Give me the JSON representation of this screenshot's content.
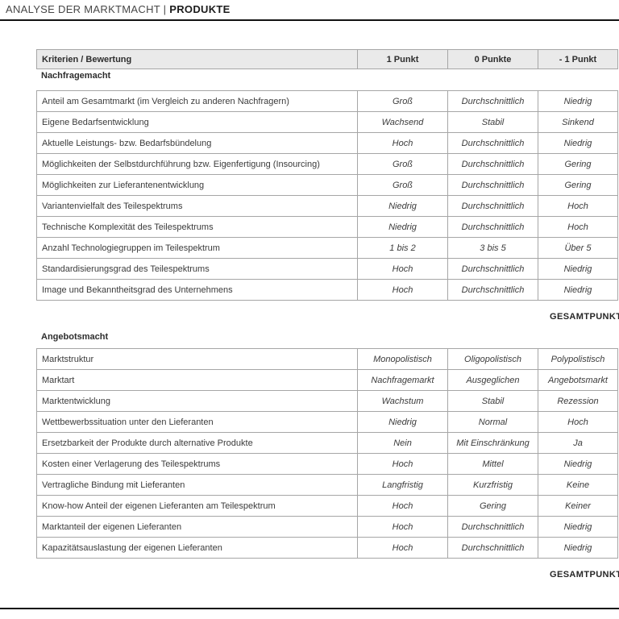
{
  "page": {
    "title_prefix": "ANALYSE DER MARKTMACHT | ",
    "title_emphasis": "PRODUKTE"
  },
  "colors": {
    "header_bg": "#eaeaea",
    "table_border": "#a6a6a6",
    "rule": "#121212",
    "text": "#3b3b3b"
  },
  "table_header": {
    "criteria": "Kriterien / Bewertung",
    "col_plus1": "1 Punkt",
    "col_zero": "0 Punkte",
    "col_minus1": "- 1 Punkt"
  },
  "sections": [
    {
      "title": "Nachfragemacht",
      "total_label": "GESAMTPUNKTE",
      "rows": [
        {
          "criterion": "Anteil am Gesamtmarkt (im Vergleich zu anderen Nachfragern)",
          "p1": "Groß",
          "p0": "Durchschnittlich",
          "m1": "Niedrig"
        },
        {
          "criterion": "Eigene Bedarfsentwicklung",
          "p1": "Wachsend",
          "p0": "Stabil",
          "m1": "Sinkend"
        },
        {
          "criterion": "Aktuelle Leistungs- bzw. Bedarfsbündelung",
          "p1": "Hoch",
          "p0": "Durchschnittlich",
          "m1": "Niedrig"
        },
        {
          "criterion": "Möglichkeiten der Selbstdurchführung bzw. Eigenfertigung (Insourcing)",
          "p1": "Groß",
          "p0": "Durchschnittlich",
          "m1": "Gering"
        },
        {
          "criterion": "Möglichkeiten zur Lieferantenentwicklung",
          "p1": "Groß",
          "p0": "Durchschnittlich",
          "m1": "Gering"
        },
        {
          "criterion": "Variantenvielfalt des Teilespektrums",
          "p1": "Niedrig",
          "p0": "Durchschnittlich",
          "m1": "Hoch"
        },
        {
          "criterion": "Technische Komplexität des Teilespektrums",
          "p1": "Niedrig",
          "p0": "Durchschnittlich",
          "m1": "Hoch"
        },
        {
          "criterion": "Anzahl Technologiegruppen im Teilespektrum",
          "p1": "1 bis 2",
          "p0": "3 bis 5",
          "m1": "Über 5"
        },
        {
          "criterion": "Standardisierungsgrad des Teilespektrums",
          "p1": "Hoch",
          "p0": "Durchschnittlich",
          "m1": "Niedrig"
        },
        {
          "criterion": "Image und Bekanntheitsgrad des Unternehmens",
          "p1": "Hoch",
          "p0": "Durchschnittlich",
          "m1": "Niedrig"
        }
      ]
    },
    {
      "title": "Angebotsmacht",
      "total_label": "GESAMTPUNKTE",
      "rows": [
        {
          "criterion": "Marktstruktur",
          "p1": "Monopolistisch",
          "p0": "Oligopolistisch",
          "m1": "Polypolistisch"
        },
        {
          "criterion": "Marktart",
          "p1": "Nachfragemarkt",
          "p0": "Ausgeglichen",
          "m1": "Angebotsmarkt"
        },
        {
          "criterion": "Marktentwicklung",
          "p1": "Wachstum",
          "p0": "Stabil",
          "m1": "Rezession"
        },
        {
          "criterion": "Wettbewerbssituation unter den Lieferanten",
          "p1": "Niedrig",
          "p0": "Normal",
          "m1": "Hoch"
        },
        {
          "criterion": "Ersetzbarkeit der Produkte durch alternative Produkte",
          "p1": "Nein",
          "p0": "Mit Einschränkung",
          "m1": "Ja"
        },
        {
          "criterion": "Kosten einer Verlagerung des Teilespektrums",
          "p1": "Hoch",
          "p0": "Mittel",
          "m1": "Niedrig"
        },
        {
          "criterion": "Vertragliche Bindung mit Lieferanten",
          "p1": "Langfristig",
          "p0": "Kurzfristig",
          "m1": "Keine"
        },
        {
          "criterion": "Know-how Anteil der eigenen Lieferanten am Teilespektrum",
          "p1": "Hoch",
          "p0": "Gering",
          "m1": "Keiner"
        },
        {
          "criterion": "Marktanteil der eigenen Lieferanten",
          "p1": "Hoch",
          "p0": "Durchschnittlich",
          "m1": "Niedrig"
        },
        {
          "criterion": "Kapazitätsauslastung der eigenen Lieferanten",
          "p1": "Hoch",
          "p0": "Durchschnittlich",
          "m1": "Niedrig"
        }
      ]
    }
  ]
}
